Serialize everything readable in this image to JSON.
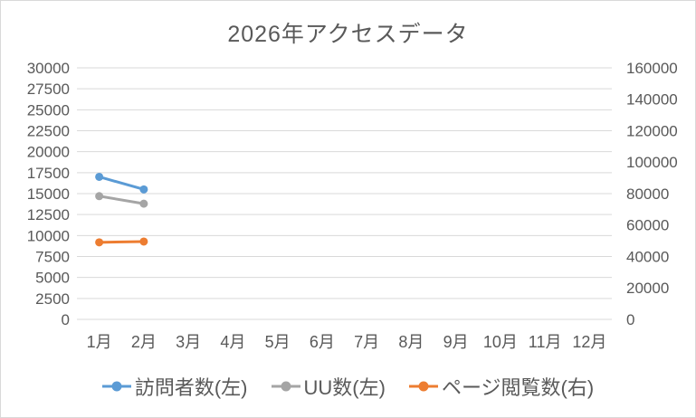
{
  "window": {
    "background_color": "#FFFFFF",
    "border_color": "#D9D9D9"
  },
  "chart_data": {
    "type": "line",
    "title": "2026年アクセスデータ",
    "text_color": "#595959",
    "gridline_color": "#D9D9D9",
    "grid": true,
    "legend_position": "bottom",
    "categories": [
      "1月",
      "2月",
      "3月",
      "4月",
      "5月",
      "6月",
      "7月",
      "8月",
      "9月",
      "10月",
      "11月",
      "12月"
    ],
    "left_axis": {
      "min": 0,
      "max": 30000,
      "step": 2500,
      "tick_labels": [
        "0",
        "2500",
        "5000",
        "7500",
        "10000",
        "12500",
        "15000",
        "17500",
        "20000",
        "22500",
        "25000",
        "27500",
        "30000"
      ]
    },
    "right_axis": {
      "min": 0,
      "max": 160000,
      "step": 20000,
      "tick_labels": [
        "0",
        "20000",
        "40000",
        "60000",
        "80000",
        "100000",
        "120000",
        "140000",
        "160000"
      ]
    },
    "series": [
      {
        "name": "訪問者数(左)",
        "axis": "left",
        "color": "#5B9BD5",
        "values": [
          17000,
          15500,
          null,
          null,
          null,
          null,
          null,
          null,
          null,
          null,
          null,
          null
        ]
      },
      {
        "name": "UU数(左)",
        "axis": "left",
        "color": "#A5A5A5",
        "values": [
          14700,
          13800,
          null,
          null,
          null,
          null,
          null,
          null,
          null,
          null,
          null,
          null
        ]
      },
      {
        "name": "ページ閲覧数(右)",
        "axis": "right",
        "color": "#ED7D31",
        "values": [
          49000,
          49500,
          null,
          null,
          null,
          null,
          null,
          null,
          null,
          null,
          null,
          null
        ]
      }
    ]
  }
}
